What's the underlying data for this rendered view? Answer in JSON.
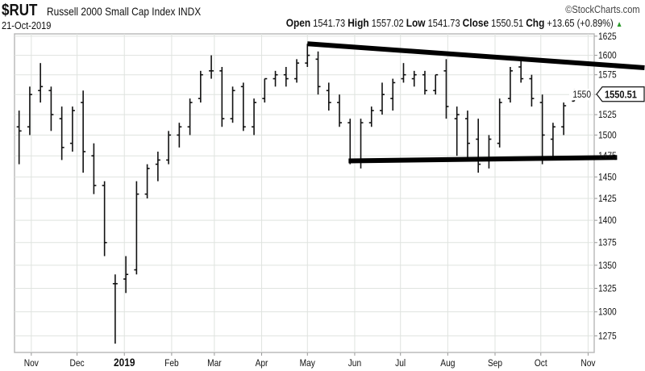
{
  "header": {
    "symbol": "$RUT",
    "name": "Russell 2000 Small Cap Index",
    "exchange": "INDX",
    "copyright": "©StockCharts.com",
    "date": "21-Oct-2019",
    "open_label": "Open",
    "open": "1541.73",
    "high_label": "High",
    "high": "1557.02",
    "low_label": "Low",
    "low": "1541.73",
    "close_label": "Close",
    "close": "1550.51",
    "chg_label": "Chg",
    "chg": "+13.65 (+0.89%)",
    "chg_icon": "triangle-up-icon",
    "chg_color": "#2a9a2a"
  },
  "chart_data": {
    "type": "ohlc",
    "title": "$RUT Russell 2000 Small Cap Index INDX",
    "y_scale": "log",
    "ylim": [
      1258,
      1628
    ],
    "xlim": [
      "2018-10-21",
      "2019-11-05"
    ],
    "grid": true,
    "y_ticks": [
      1625,
      1600,
      1575,
      1550,
      1525,
      1500,
      1475,
      1450,
      1425,
      1400,
      1375,
      1350,
      1325,
      1300,
      1275
    ],
    "x_ticks": [
      {
        "date": "2018-11-01",
        "label": "Nov",
        "bold": false
      },
      {
        "date": "2018-12-01",
        "label": "Dec",
        "bold": false
      },
      {
        "date": "2019-01-01",
        "label": "2019",
        "bold": true
      },
      {
        "date": "2019-02-01",
        "label": "Feb",
        "bold": false
      },
      {
        "date": "2019-03-01",
        "label": "Mar",
        "bold": false
      },
      {
        "date": "2019-04-01",
        "label": "Apr",
        "bold": false
      },
      {
        "date": "2019-05-01",
        "label": "May",
        "bold": false
      },
      {
        "date": "2019-06-01",
        "label": "Jun",
        "bold": false
      },
      {
        "date": "2019-07-01",
        "label": "Jul",
        "bold": false
      },
      {
        "date": "2019-08-01",
        "label": "Aug",
        "bold": false
      },
      {
        "date": "2019-09-01",
        "label": "Sep",
        "bold": false
      },
      {
        "date": "2019-10-01",
        "label": "Oct",
        "bold": false
      },
      {
        "date": "2019-11-01",
        "label": "Nov",
        "bold": false
      }
    ],
    "last_price_label": "1550.51",
    "bar_color": "#111111",
    "bars_columns": [
      "week",
      "open",
      "high",
      "low",
      "close"
    ],
    "bars": [
      [
        "2018-10-22",
        1510,
        1530,
        1465,
        1505
      ],
      [
        "2018-10-29",
        1510,
        1560,
        1500,
        1550
      ],
      [
        "2018-11-05",
        1555,
        1590,
        1540,
        1560
      ],
      [
        "2018-11-12",
        1555,
        1560,
        1505,
        1525
      ],
      [
        "2018-11-19",
        1520,
        1535,
        1470,
        1485
      ],
      [
        "2018-11-26",
        1490,
        1535,
        1480,
        1530
      ],
      [
        "2018-12-03",
        1540,
        1555,
        1455,
        1480
      ],
      [
        "2018-12-10",
        1475,
        1490,
        1430,
        1440
      ],
      [
        "2018-12-17",
        1440,
        1445,
        1360,
        1375
      ],
      [
        "2018-12-24",
        1330,
        1340,
        1267,
        1330
      ],
      [
        "2018-12-31",
        1335,
        1360,
        1320,
        1340
      ],
      [
        "2019-01-07",
        1345,
        1445,
        1340,
        1430
      ],
      [
        "2019-01-14",
        1430,
        1465,
        1425,
        1460
      ],
      [
        "2019-01-21",
        1465,
        1480,
        1445,
        1470
      ],
      [
        "2019-01-28",
        1470,
        1505,
        1465,
        1500
      ],
      [
        "2019-02-04",
        1500,
        1515,
        1485,
        1510
      ],
      [
        "2019-02-11",
        1510,
        1545,
        1500,
        1540
      ],
      [
        "2019-02-18",
        1545,
        1580,
        1540,
        1575
      ],
      [
        "2019-02-25",
        1580,
        1600,
        1570,
        1580
      ],
      [
        "2019-03-04",
        1580,
        1585,
        1510,
        1520
      ],
      [
        "2019-03-11",
        1520,
        1560,
        1515,
        1555
      ],
      [
        "2019-03-18",
        1560,
        1565,
        1505,
        1510
      ],
      [
        "2019-03-25",
        1510,
        1545,
        1500,
        1540
      ],
      [
        "2019-04-01",
        1545,
        1570,
        1540,
        1570
      ],
      [
        "2019-04-08",
        1570,
        1580,
        1560,
        1575
      ],
      [
        "2019-04-15",
        1575,
        1585,
        1560,
        1570
      ],
      [
        "2019-04-22",
        1570,
        1595,
        1565,
        1590
      ],
      [
        "2019-04-29",
        1590,
        1615,
        1585,
        1600
      ],
      [
        "2019-05-06",
        1595,
        1605,
        1550,
        1560
      ],
      [
        "2019-05-13",
        1555,
        1565,
        1530,
        1540
      ],
      [
        "2019-05-20",
        1540,
        1550,
        1510,
        1515
      ],
      [
        "2019-05-27",
        1515,
        1520,
        1465,
        1470
      ],
      [
        "2019-06-03",
        1470,
        1520,
        1460,
        1515
      ],
      [
        "2019-06-10",
        1515,
        1535,
        1510,
        1530
      ],
      [
        "2019-06-17",
        1530,
        1565,
        1525,
        1550
      ],
      [
        "2019-06-24",
        1545,
        1570,
        1530,
        1565
      ],
      [
        "2019-07-01",
        1570,
        1590,
        1565,
        1575
      ],
      [
        "2019-07-08",
        1570,
        1580,
        1560,
        1575
      ],
      [
        "2019-07-15",
        1575,
        1580,
        1550,
        1555
      ],
      [
        "2019-07-22",
        1555,
        1575,
        1550,
        1575
      ],
      [
        "2019-07-29",
        1580,
        1595,
        1520,
        1535
      ],
      [
        "2019-08-05",
        1520,
        1535,
        1475,
        1525
      ],
      [
        "2019-08-12",
        1520,
        1530,
        1470,
        1490
      ],
      [
        "2019-08-19",
        1495,
        1520,
        1455,
        1465
      ],
      [
        "2019-08-26",
        1470,
        1500,
        1460,
        1495
      ],
      [
        "2019-09-02",
        1490,
        1545,
        1485,
        1540
      ],
      [
        "2019-09-09",
        1545,
        1585,
        1540,
        1580
      ],
      [
        "2019-09-16",
        1585,
        1595,
        1565,
        1570
      ],
      [
        "2019-09-23",
        1570,
        1575,
        1535,
        1545
      ],
      [
        "2019-09-30",
        1540,
        1550,
        1465,
        1500
      ],
      [
        "2019-10-07",
        1495,
        1515,
        1470,
        1510
      ],
      [
        "2019-10-14",
        1510,
        1540,
        1500,
        1536
      ],
      [
        "2019-10-21",
        1541.73,
        1557.02,
        1541.73,
        1550.51
      ]
    ],
    "trendlines": [
      {
        "from": [
          "2019-05-01",
          1615
        ],
        "to": [
          "2019-12-08",
          1584
        ],
        "color": "#000000"
      },
      {
        "from": [
          "2019-05-28",
          1469
        ],
        "to": [
          "2019-11-20",
          1473
        ],
        "color": "#000000"
      }
    ]
  }
}
